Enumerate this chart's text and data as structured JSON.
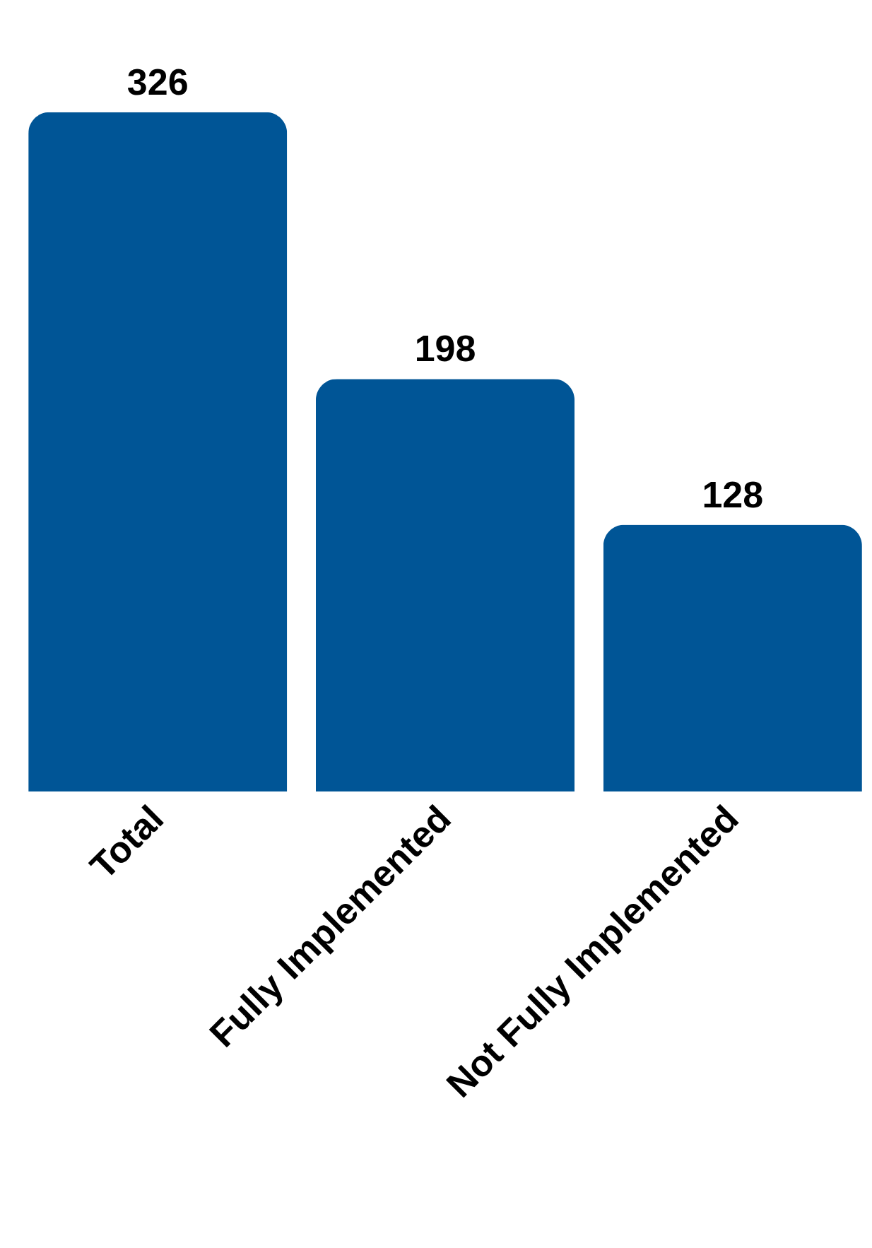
{
  "chart_data": {
    "type": "bar",
    "categories": [
      "Total",
      "Fully Implemented",
      "Not Fully Implemented"
    ],
    "values": [
      326,
      198,
      128
    ],
    "color": "#005596",
    "data_labels": true
  }
}
